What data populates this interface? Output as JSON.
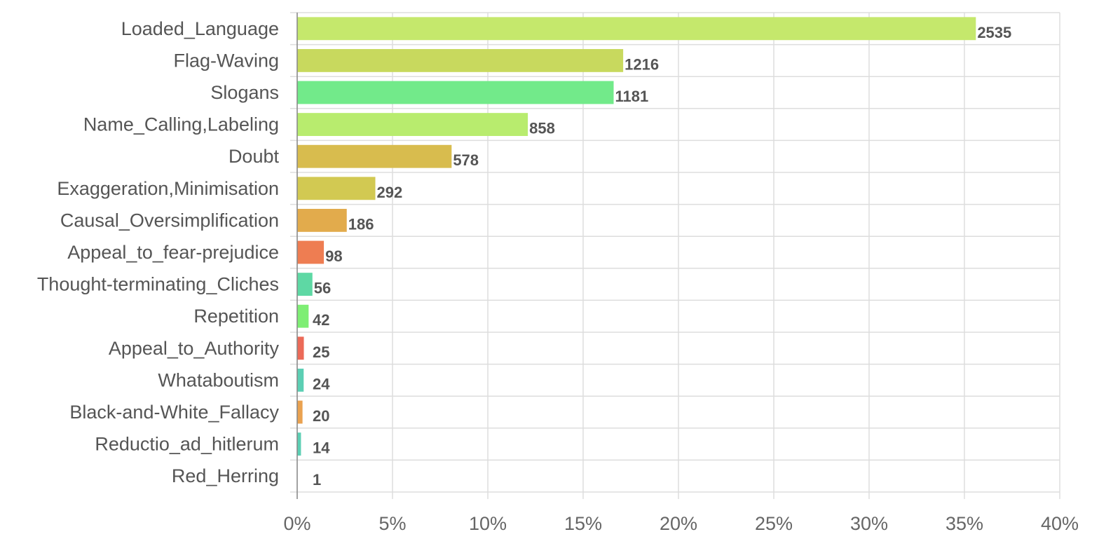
{
  "chart_data": {
    "type": "bar",
    "orientation": "horizontal",
    "title": "",
    "xlabel": "",
    "ylabel": "",
    "categories": [
      "Loaded_Language",
      "Flag-Waving",
      "Slogans",
      "Name_Calling,Labeling",
      "Doubt",
      "Exaggeration,Minimisation",
      "Causal_Oversimplification",
      "Appeal_to_fear-prejudice",
      "Thought-terminating_Cliches",
      "Repetition",
      "Appeal_to_Authority",
      "Whataboutism",
      "Black-and-White_Fallacy",
      "Reductio_ad_hitlerum",
      "Red_Herring"
    ],
    "percent_values": [
      35.6,
      17.1,
      16.6,
      12.1,
      8.1,
      4.1,
      2.6,
      1.4,
      0.8,
      0.6,
      0.35,
      0.34,
      0.28,
      0.2,
      0.01
    ],
    "count_labels": [
      "2535",
      "1216",
      "1181",
      "858",
      "578",
      "292",
      "186",
      "98",
      "56",
      "42",
      "25",
      "24",
      "20",
      "14",
      "1"
    ],
    "colors": [
      "#c5e86c",
      "#c8d95e",
      "#72ea8a",
      "#b8ec6e",
      "#d8bc4e",
      "#d2c952",
      "#e2ab4c",
      "#ee7d52",
      "#5ed8a4",
      "#7eee74",
      "#ec6a58",
      "#5ccfb4",
      "#eaa250",
      "#5ccfb4",
      "#5ccfb4"
    ],
    "xlim": [
      0,
      40
    ],
    "xticks": [
      0,
      5,
      10,
      15,
      20,
      25,
      30,
      35,
      40
    ],
    "xtick_labels": [
      "0%",
      "5%",
      "10%",
      "15%",
      "20%",
      "25%",
      "30%",
      "35%",
      "40%"
    ],
    "grid": true,
    "legend": "none"
  }
}
